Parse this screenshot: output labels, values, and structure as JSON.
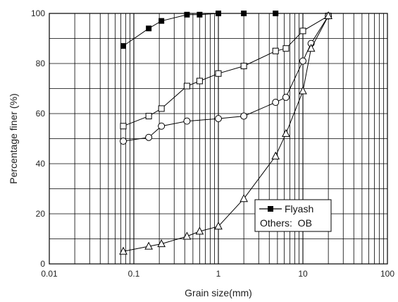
{
  "chart_data": {
    "type": "line",
    "xlabel": "Grain size(mm)",
    "ylabel": "Percentage finer (%)",
    "xscale": "log",
    "xlim": [
      0.01,
      100
    ],
    "ylim": [
      0,
      100
    ],
    "x_ticks": [
      {
        "value": 0.01,
        "label": "0.01"
      },
      {
        "value": 0.1,
        "label": "0.1"
      },
      {
        "value": 1,
        "label": "1"
      },
      {
        "value": 10,
        "label": "10"
      },
      {
        "value": 100,
        "label": "100"
      }
    ],
    "y_ticks": [
      {
        "value": 0,
        "label": "0"
      },
      {
        "value": 20,
        "label": "20"
      },
      {
        "value": 40,
        "label": "40"
      },
      {
        "value": 60,
        "label": "60"
      },
      {
        "value": 80,
        "label": "80"
      },
      {
        "value": 100,
        "label": "100"
      }
    ],
    "grid": true,
    "legend": {
      "placement": "bottom-right",
      "entries": [
        "Flyash"
      ],
      "note": "Others:  OB"
    },
    "series": [
      {
        "name": "Flyash",
        "marker": "filled-square",
        "x": [
          0.075,
          0.15,
          0.212,
          0.425,
          0.6,
          1.0,
          2.0,
          4.75
        ],
        "y": [
          87,
          94,
          97,
          99.5,
          99.5,
          100,
          100,
          100
        ]
      },
      {
        "marker": "open-square",
        "x": [
          0.075,
          0.15,
          0.212,
          0.425,
          0.6,
          1.0,
          2.0,
          4.75,
          6.3,
          10,
          20
        ],
        "y": [
          55,
          59,
          62,
          71,
          73,
          76,
          79,
          85,
          86,
          93,
          99
        ]
      },
      {
        "marker": "open-circle",
        "x": [
          0.075,
          0.15,
          0.212,
          0.425,
          1.0,
          2.0,
          4.75,
          6.3,
          10,
          12.5,
          20
        ],
        "y": [
          49,
          50.5,
          55,
          57,
          58,
          59,
          64.5,
          66.5,
          81,
          88,
          99
        ]
      },
      {
        "marker": "open-triangle",
        "x": [
          0.075,
          0.15,
          0.212,
          0.425,
          0.6,
          1.0,
          2.0,
          4.75,
          6.3,
          10,
          12.5,
          20
        ],
        "y": [
          5,
          7,
          8,
          11,
          13,
          15,
          26,
          43,
          52,
          69,
          86,
          99
        ]
      }
    ]
  }
}
